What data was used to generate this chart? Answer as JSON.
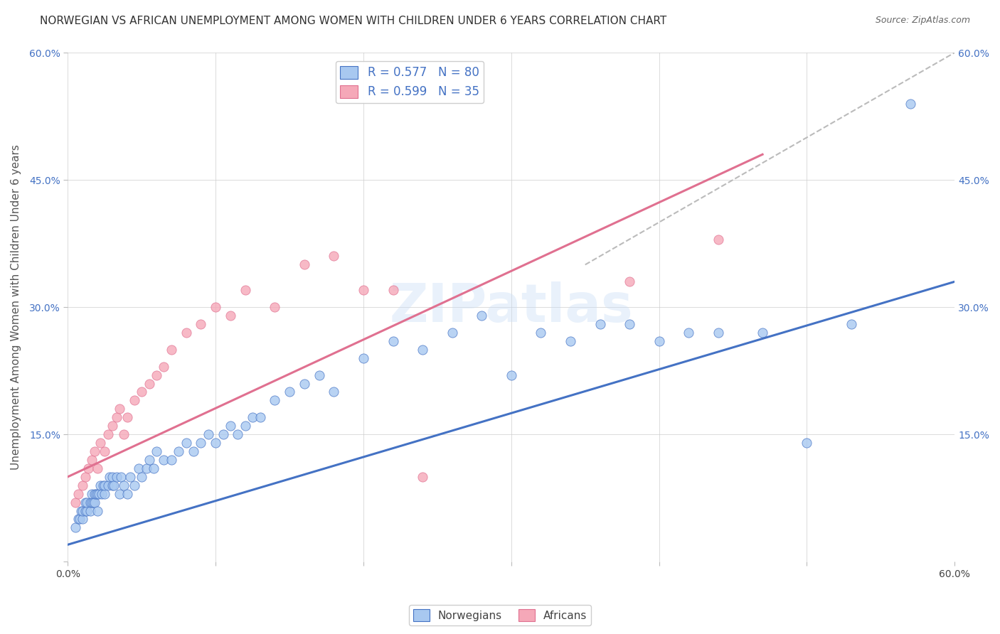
{
  "title": "NORWEGIAN VS AFRICAN UNEMPLOYMENT AMONG WOMEN WITH CHILDREN UNDER 6 YEARS CORRELATION CHART",
  "source": "Source: ZipAtlas.com",
  "ylabel": "Unemployment Among Women with Children Under 6 years",
  "legend_nor": "R = 0.577   N = 80",
  "legend_afr": "R = 0.599   N = 35",
  "color_nor": "#a8c8f0",
  "color_afr": "#f5a8b8",
  "line_color_nor": "#4472c4",
  "line_color_afr": "#e07090",
  "watermark": "ZIPatlas",
  "xlim": [
    0.0,
    0.6
  ],
  "ylim": [
    0.0,
    0.6
  ],
  "bg_color": "#ffffff",
  "grid_color": "#cccccc",
  "nor_line_x0": 0.0,
  "nor_line_y0": 0.02,
  "nor_line_x1": 0.6,
  "nor_line_y1": 0.33,
  "afr_line_x0": 0.0,
  "afr_line_y0": 0.1,
  "afr_line_x1": 0.47,
  "afr_line_y1": 0.48,
  "nor_x": [
    0.005,
    0.007,
    0.008,
    0.009,
    0.01,
    0.01,
    0.012,
    0.012,
    0.013,
    0.013,
    0.015,
    0.015,
    0.016,
    0.016,
    0.017,
    0.018,
    0.018,
    0.019,
    0.02,
    0.02,
    0.021,
    0.022,
    0.023,
    0.024,
    0.025,
    0.025,
    0.027,
    0.028,
    0.03,
    0.03,
    0.031,
    0.033,
    0.035,
    0.036,
    0.038,
    0.04,
    0.042,
    0.045,
    0.048,
    0.05,
    0.053,
    0.055,
    0.058,
    0.06,
    0.065,
    0.07,
    0.075,
    0.08,
    0.085,
    0.09,
    0.095,
    0.1,
    0.105,
    0.11,
    0.115,
    0.12,
    0.125,
    0.13,
    0.14,
    0.15,
    0.16,
    0.17,
    0.18,
    0.2,
    0.22,
    0.24,
    0.26,
    0.28,
    0.3,
    0.32,
    0.34,
    0.36,
    0.38,
    0.4,
    0.42,
    0.44,
    0.47,
    0.5,
    0.53,
    0.57
  ],
  "nor_y": [
    0.04,
    0.05,
    0.05,
    0.06,
    0.05,
    0.06,
    0.06,
    0.07,
    0.06,
    0.07,
    0.06,
    0.07,
    0.07,
    0.08,
    0.07,
    0.07,
    0.08,
    0.08,
    0.06,
    0.08,
    0.08,
    0.09,
    0.08,
    0.09,
    0.08,
    0.09,
    0.09,
    0.1,
    0.09,
    0.1,
    0.09,
    0.1,
    0.08,
    0.1,
    0.09,
    0.08,
    0.1,
    0.09,
    0.11,
    0.1,
    0.11,
    0.12,
    0.11,
    0.13,
    0.12,
    0.12,
    0.13,
    0.14,
    0.13,
    0.14,
    0.15,
    0.14,
    0.15,
    0.16,
    0.15,
    0.16,
    0.17,
    0.17,
    0.19,
    0.2,
    0.21,
    0.22,
    0.2,
    0.24,
    0.26,
    0.25,
    0.27,
    0.29,
    0.22,
    0.27,
    0.26,
    0.28,
    0.28,
    0.26,
    0.27,
    0.27,
    0.27,
    0.14,
    0.28,
    0.54
  ],
  "afr_x": [
    0.005,
    0.007,
    0.01,
    0.012,
    0.014,
    0.016,
    0.018,
    0.02,
    0.022,
    0.025,
    0.027,
    0.03,
    0.033,
    0.035,
    0.038,
    0.04,
    0.045,
    0.05,
    0.055,
    0.06,
    0.065,
    0.07,
    0.08,
    0.09,
    0.1,
    0.11,
    0.12,
    0.14,
    0.16,
    0.18,
    0.2,
    0.22,
    0.24,
    0.38,
    0.44
  ],
  "afr_y": [
    0.07,
    0.08,
    0.09,
    0.1,
    0.11,
    0.12,
    0.13,
    0.11,
    0.14,
    0.13,
    0.15,
    0.16,
    0.17,
    0.18,
    0.15,
    0.17,
    0.19,
    0.2,
    0.21,
    0.22,
    0.23,
    0.25,
    0.27,
    0.28,
    0.3,
    0.29,
    0.32,
    0.3,
    0.35,
    0.36,
    0.32,
    0.32,
    0.1,
    0.33,
    0.38
  ]
}
